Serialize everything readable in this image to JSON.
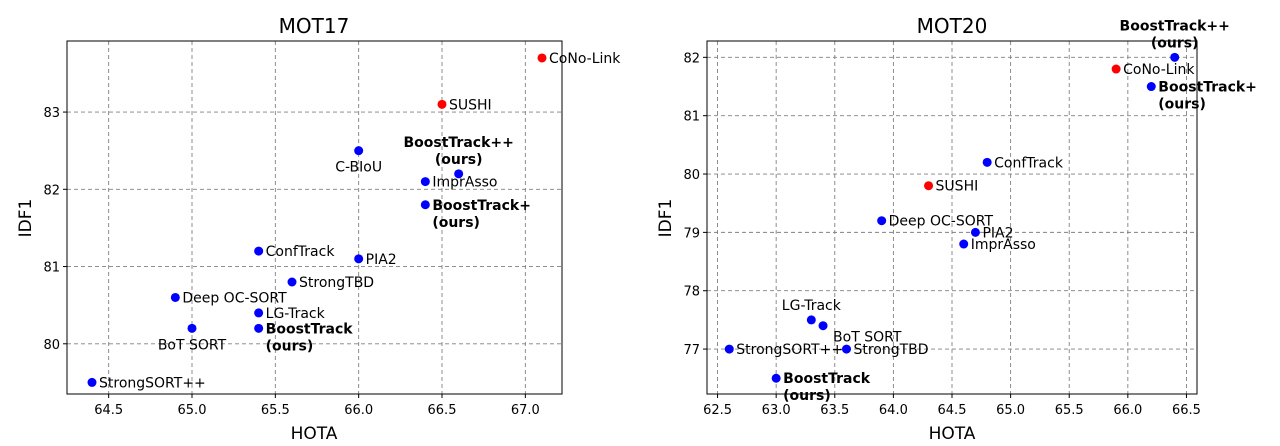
{
  "chart_data": [
    {
      "type": "scatter",
      "title": "MOT17",
      "xlabel": "HOTA",
      "ylabel": "IDF1",
      "xlim": [
        64.25,
        67.22
      ],
      "ylim": [
        79.35,
        83.92
      ],
      "xticks": [
        "64.5",
        "65.0",
        "65.5",
        "66.0",
        "66.5",
        "67.0"
      ],
      "xtick_values": [
        64.5,
        65.0,
        65.5,
        66.0,
        66.5,
        67.0
      ],
      "yticks": [
        "80",
        "81",
        "82",
        "83"
      ],
      "ytick_values": [
        80,
        81,
        82,
        83
      ],
      "grid": true,
      "points": [
        {
          "x": 64.4,
          "y": 79.5,
          "color": "#0000ff",
          "label_lines": [
            "StrongSORT++"
          ],
          "bold": false,
          "anchor": "right"
        },
        {
          "x": 64.9,
          "y": 80.6,
          "color": "#0000ff",
          "label_lines": [
            "Deep OC-SORT"
          ],
          "bold": false,
          "anchor": "right"
        },
        {
          "x": 65.0,
          "y": 80.2,
          "color": "#0000ff",
          "label_lines": [
            "BoT SORT"
          ],
          "bold": false,
          "anchor": "below"
        },
        {
          "x": 65.4,
          "y": 81.2,
          "color": "#0000ff",
          "label_lines": [
            "ConfTrack"
          ],
          "bold": false,
          "anchor": "right"
        },
        {
          "x": 65.4,
          "y": 80.4,
          "color": "#0000ff",
          "label_lines": [
            "LG-Track"
          ],
          "bold": false,
          "anchor": "right"
        },
        {
          "x": 65.4,
          "y": 80.2,
          "color": "#0000ff",
          "label_lines": [
            "BoostTrack",
            "(ours)"
          ],
          "bold": true,
          "anchor": "right"
        },
        {
          "x": 65.6,
          "y": 80.8,
          "color": "#0000ff",
          "label_lines": [
            "StrongTBD"
          ],
          "bold": false,
          "anchor": "right"
        },
        {
          "x": 66.0,
          "y": 82.5,
          "color": "#0000ff",
          "label_lines": [
            "C-BIoU"
          ],
          "bold": false,
          "anchor": "below"
        },
        {
          "x": 66.0,
          "y": 81.1,
          "color": "#0000ff",
          "label_lines": [
            "PIA2"
          ],
          "bold": false,
          "anchor": "right"
        },
        {
          "x": 66.4,
          "y": 82.1,
          "color": "#0000ff",
          "label_lines": [
            "ImprAsso"
          ],
          "bold": false,
          "anchor": "right"
        },
        {
          "x": 66.4,
          "y": 81.8,
          "color": "#0000ff",
          "label_lines": [
            "BoostTrack+",
            "(ours)"
          ],
          "bold": true,
          "anchor": "right"
        },
        {
          "x": 66.6,
          "y": 82.2,
          "color": "#0000ff",
          "label_lines": [
            "BoostTrack++",
            "(ours)"
          ],
          "bold": true,
          "anchor": "above"
        },
        {
          "x": 66.5,
          "y": 83.1,
          "color": "#ff0000",
          "label_lines": [
            "SUSHI"
          ],
          "bold": false,
          "anchor": "right"
        },
        {
          "x": 67.1,
          "y": 83.7,
          "color": "#ff0000",
          "label_lines": [
            "CoNo-Link"
          ],
          "bold": false,
          "anchor": "right"
        }
      ]
    },
    {
      "type": "scatter",
      "title": "MOT20",
      "xlabel": "HOTA",
      "ylabel": "IDF1",
      "xlim": [
        62.41,
        66.59
      ],
      "ylim": [
        76.23,
        82.28
      ],
      "xticks": [
        "62.5",
        "63.0",
        "63.5",
        "64.0",
        "64.5",
        "65.0",
        "65.5",
        "66.0",
        "66.5"
      ],
      "xtick_values": [
        62.5,
        63.0,
        63.5,
        64.0,
        64.5,
        65.0,
        65.5,
        66.0,
        66.5
      ],
      "yticks": [
        "77",
        "78",
        "79",
        "80",
        "81",
        "82"
      ],
      "ytick_values": [
        77,
        78,
        79,
        80,
        81,
        82
      ],
      "grid": true,
      "points": [
        {
          "x": 62.6,
          "y": 77.0,
          "color": "#0000ff",
          "label_lines": [
            "StrongSORT++"
          ],
          "bold": false,
          "anchor": "right"
        },
        {
          "x": 63.0,
          "y": 76.5,
          "color": "#0000ff",
          "label_lines": [
            "BoostTrack",
            "(ours)"
          ],
          "bold": true,
          "anchor": "right"
        },
        {
          "x": 63.3,
          "y": 77.5,
          "color": "#0000ff",
          "label_lines": [
            "LG-Track"
          ],
          "bold": false,
          "anchor": "above"
        },
        {
          "x": 63.4,
          "y": 77.4,
          "color": "#0000ff",
          "label_lines": [
            "BoT SORT"
          ],
          "bold": false,
          "anchor": "below-right"
        },
        {
          "x": 63.6,
          "y": 77.0,
          "color": "#0000ff",
          "label_lines": [
            "StrongTBD"
          ],
          "bold": false,
          "anchor": "right"
        },
        {
          "x": 63.9,
          "y": 79.2,
          "color": "#0000ff",
          "label_lines": [
            "Deep OC-SORT"
          ],
          "bold": false,
          "anchor": "right"
        },
        {
          "x": 64.6,
          "y": 78.8,
          "color": "#0000ff",
          "label_lines": [
            "ImprAsso"
          ],
          "bold": false,
          "anchor": "right"
        },
        {
          "x": 64.7,
          "y": 79.0,
          "color": "#0000ff",
          "label_lines": [
            "PIA2"
          ],
          "bold": false,
          "anchor": "right"
        },
        {
          "x": 64.8,
          "y": 80.2,
          "color": "#0000ff",
          "label_lines": [
            "ConfTrack"
          ],
          "bold": false,
          "anchor": "right"
        },
        {
          "x": 64.3,
          "y": 79.8,
          "color": "#ff0000",
          "label_lines": [
            "SUSHI"
          ],
          "bold": false,
          "anchor": "right"
        },
        {
          "x": 65.9,
          "y": 81.8,
          "color": "#ff0000",
          "label_lines": [
            "CoNo-Link"
          ],
          "bold": false,
          "anchor": "right"
        },
        {
          "x": 66.2,
          "y": 81.5,
          "color": "#0000ff",
          "label_lines": [
            "BoostTrack+",
            "(ours)"
          ],
          "bold": true,
          "anchor": "right"
        },
        {
          "x": 66.4,
          "y": 82.0,
          "color": "#0000ff",
          "label_lines": [
            "BoostTrack++",
            "(ours)"
          ],
          "bold": true,
          "anchor": "above"
        }
      ]
    }
  ]
}
